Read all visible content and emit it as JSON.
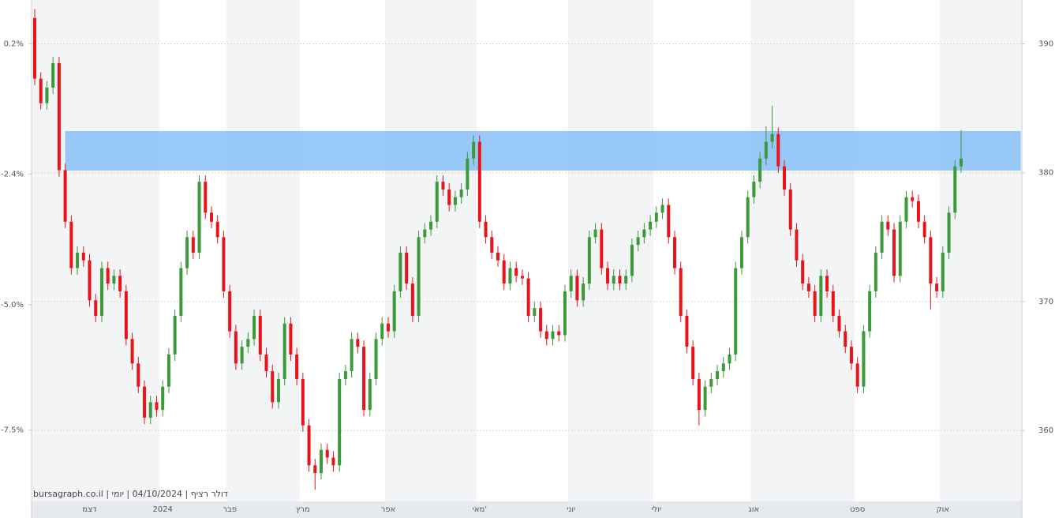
{
  "chart_data": {
    "type": "candlestick",
    "watermark": "bursagraph.co.il | דולר רציף | 04/10/2024 | יומי",
    "categories": [
      null,
      null,
      null,
      null,
      null,
      null,
      null,
      null,
      null,
      "דצמ",
      null,
      null,
      null,
      null,
      null,
      null,
      null,
      null,
      null,
      null,
      null,
      "2024",
      null,
      null,
      null,
      null,
      null,
      null,
      null,
      null,
      null,
      null,
      "פבר",
      null,
      null,
      null,
      null,
      null,
      null,
      null,
      null,
      null,
      null,
      null,
      "מרץ",
      null,
      null,
      null,
      null,
      null,
      null,
      null,
      null,
      null,
      null,
      null,
      null,
      null,
      "אפר",
      null,
      null,
      null,
      null,
      null,
      null,
      null,
      null,
      null,
      null,
      null,
      null,
      null,
      null,
      "מאי'",
      null,
      null,
      null,
      null,
      null,
      null,
      null,
      null,
      null,
      null,
      null,
      null,
      null,
      null,
      "יוני",
      null,
      null,
      null,
      null,
      null,
      null,
      null,
      null,
      null,
      null,
      null,
      null,
      null,
      "יולי",
      null,
      null,
      null,
      null,
      null,
      null,
      null,
      null,
      null,
      null,
      null,
      null,
      null,
      null,
      null,
      "אוג",
      null,
      null,
      null,
      null,
      null,
      null,
      null,
      null,
      null,
      null,
      null,
      null,
      null,
      null,
      null,
      null,
      "ספט",
      null,
      null,
      null,
      null,
      null,
      null,
      null,
      null,
      null,
      null,
      null,
      null,
      null,
      "אוק",
      null,
      null,
      null
    ],
    "open": [
      392.0,
      387.3,
      385.4,
      386.6,
      388.5,
      380.2,
      376.2,
      372.6,
      373.8,
      373.2,
      370.1,
      368.9,
      372.6,
      371.4,
      372.0,
      370.8,
      367.1,
      365.2,
      363.4,
      361.0,
      362.2,
      361.6,
      363.4,
      365.9,
      368.9,
      372.6,
      375.0,
      373.8,
      379.3,
      376.9,
      376.2,
      375.0,
      370.8,
      367.7,
      365.2,
      366.5,
      367.1,
      368.9,
      365.9,
      364.6,
      362.2,
      364.0,
      368.3,
      365.9,
      364.0,
      360.4,
      357.3,
      356.7,
      358.5,
      357.9,
      357.3,
      364.0,
      364.6,
      367.1,
      366.5,
      361.6,
      364.0,
      367.1,
      368.3,
      367.7,
      370.8,
      373.8,
      371.4,
      368.9,
      375.0,
      375.6,
      376.2,
      379.3,
      378.7,
      377.5,
      378.1,
      378.7,
      381.1,
      382.4,
      376.2,
      375.0,
      373.8,
      373.2,
      371.4,
      372.6,
      372.0,
      371.8,
      368.9,
      369.5,
      367.7,
      367.1,
      367.7,
      367.4,
      370.8,
      372.0,
      370.1,
      371.4,
      375.0,
      375.6,
      372.6,
      371.4,
      372.0,
      371.4,
      372.0,
      374.4,
      375.0,
      375.6,
      376.2,
      376.9,
      377.5,
      375.0,
      372.6,
      368.9,
      366.5,
      364.0,
      361.6,
      363.4,
      364.0,
      364.6,
      365.2,
      365.9,
      372.6,
      375.0,
      378.1,
      379.3,
      381.1,
      382.4,
      383.0,
      380.5,
      378.7,
      375.6,
      373.2,
      371.4,
      370.8,
      368.9,
      372.0,
      370.8,
      368.9,
      367.7,
      366.5,
      365.2,
      363.4,
      367.7,
      370.8,
      373.8,
      376.2,
      375.6,
      372.0,
      376.2,
      378.1,
      377.8,
      376.2,
      375.0,
      371.4,
      370.8,
      373.8,
      376.9,
      380.5
    ],
    "high": [
      392.7,
      387.8,
      387.1,
      389.0,
      389.0,
      380.7,
      376.7,
      374.3,
      374.3,
      373.7,
      370.6,
      373.1,
      373.1,
      372.5,
      372.5,
      371.3,
      367.6,
      365.7,
      363.9,
      362.7,
      362.7,
      363.9,
      366.4,
      369.4,
      373.1,
      375.5,
      375.5,
      379.8,
      379.8,
      377.4,
      376.7,
      375.5,
      371.3,
      368.2,
      367.0,
      367.6,
      369.4,
      369.4,
      366.4,
      365.1,
      364.5,
      368.8,
      368.8,
      366.4,
      364.5,
      360.9,
      357.8,
      359.0,
      359.0,
      358.4,
      364.5,
      365.1,
      367.6,
      367.6,
      367.0,
      364.5,
      367.6,
      368.8,
      368.8,
      371.3,
      374.3,
      374.3,
      371.9,
      375.5,
      376.1,
      376.7,
      379.8,
      379.8,
      379.2,
      378.6,
      379.2,
      381.6,
      382.9,
      382.9,
      376.7,
      375.5,
      374.3,
      373.7,
      373.1,
      373.1,
      372.5,
      372.3,
      370.0,
      370.0,
      368.2,
      368.2,
      368.2,
      371.3,
      372.5,
      372.5,
      371.9,
      375.5,
      376.1,
      376.1,
      373.1,
      372.5,
      372.5,
      372.5,
      374.9,
      375.5,
      376.1,
      376.7,
      377.4,
      378.0,
      378.0,
      375.5,
      373.1,
      369.4,
      367.0,
      364.5,
      363.9,
      364.5,
      365.1,
      365.7,
      366.4,
      373.1,
      375.5,
      378.6,
      379.8,
      381.6,
      383.6,
      385.2,
      383.5,
      381.0,
      379.2,
      376.1,
      373.7,
      371.9,
      371.3,
      372.5,
      372.5,
      371.3,
      369.4,
      368.2,
      367.0,
      365.7,
      368.2,
      371.3,
      374.3,
      376.7,
      376.7,
      376.1,
      376.7,
      378.6,
      378.6,
      378.3,
      376.7,
      375.5,
      371.9,
      374.3,
      377.4,
      381.0,
      383.3
    ],
    "low": [
      386.8,
      384.9,
      384.9,
      386.1,
      379.7,
      375.7,
      372.1,
      372.1,
      372.7,
      369.6,
      368.4,
      368.4,
      370.9,
      370.9,
      370.3,
      366.6,
      364.7,
      362.9,
      360.5,
      360.5,
      361.1,
      361.1,
      362.9,
      365.4,
      368.4,
      372.1,
      373.3,
      373.3,
      376.4,
      375.7,
      374.5,
      370.3,
      367.2,
      364.7,
      364.7,
      366.0,
      366.6,
      365.4,
      364.1,
      361.7,
      361.7,
      363.5,
      365.4,
      363.5,
      359.9,
      356.8,
      355.4,
      356.2,
      357.4,
      356.8,
      356.8,
      363.5,
      364.1,
      366.0,
      361.1,
      361.1,
      363.5,
      366.6,
      367.2,
      367.2,
      370.3,
      370.9,
      368.4,
      368.4,
      374.5,
      375.1,
      375.7,
      378.2,
      377.0,
      377.0,
      377.6,
      378.2,
      380.6,
      375.7,
      374.5,
      373.3,
      372.7,
      370.9,
      370.9,
      371.5,
      371.3,
      368.4,
      368.4,
      367.2,
      366.6,
      366.6,
      366.9,
      366.9,
      370.3,
      369.6,
      369.6,
      370.9,
      374.5,
      372.1,
      370.9,
      370.9,
      370.9,
      370.9,
      371.5,
      373.9,
      374.5,
      375.1,
      375.7,
      376.4,
      374.5,
      372.1,
      368.4,
      366.0,
      363.5,
      360.4,
      361.1,
      362.9,
      363.5,
      364.1,
      364.7,
      365.4,
      372.1,
      374.5,
      377.6,
      378.8,
      380.6,
      381.9,
      380.0,
      378.2,
      375.1,
      372.7,
      370.9,
      370.3,
      368.4,
      368.4,
      370.3,
      368.4,
      367.2,
      366.0,
      364.7,
      362.9,
      362.9,
      367.2,
      370.3,
      373.3,
      375.1,
      371.5,
      371.5,
      375.7,
      377.3,
      375.7,
      374.5,
      369.4,
      370.3,
      370.3,
      373.3,
      376.4,
      380.0
    ],
    "close": [
      387.3,
      385.4,
      386.6,
      388.5,
      380.2,
      376.2,
      372.6,
      373.8,
      373.2,
      370.1,
      368.9,
      372.6,
      371.4,
      372.0,
      370.8,
      367.1,
      365.2,
      363.4,
      361.0,
      362.2,
      361.6,
      363.4,
      365.9,
      368.9,
      372.6,
      375.0,
      373.8,
      379.3,
      376.9,
      376.2,
      375.0,
      370.8,
      367.7,
      365.2,
      366.5,
      367.1,
      368.9,
      365.9,
      364.6,
      362.2,
      364.0,
      368.3,
      365.9,
      364.0,
      360.4,
      357.3,
      356.7,
      358.5,
      357.9,
      357.3,
      364.0,
      364.6,
      367.1,
      366.5,
      361.6,
      364.0,
      367.1,
      368.3,
      367.7,
      370.8,
      373.8,
      371.4,
      368.9,
      375.0,
      375.6,
      376.2,
      379.3,
      378.7,
      377.5,
      378.1,
      378.7,
      381.1,
      382.4,
      376.2,
      375.0,
      373.8,
      373.2,
      371.4,
      372.6,
      372.0,
      371.8,
      368.9,
      369.5,
      367.7,
      367.1,
      367.7,
      367.4,
      370.8,
      372.0,
      370.1,
      371.4,
      375.0,
      375.6,
      372.6,
      371.4,
      372.0,
      371.4,
      372.0,
      374.4,
      375.0,
      375.6,
      376.2,
      376.9,
      377.5,
      375.0,
      372.6,
      368.9,
      366.5,
      364.0,
      361.6,
      363.4,
      364.0,
      364.6,
      365.2,
      365.9,
      372.6,
      375.0,
      378.1,
      379.3,
      381.1,
      382.4,
      383.0,
      380.5,
      378.7,
      375.6,
      373.2,
      371.4,
      370.8,
      368.9,
      372.0,
      370.8,
      368.9,
      367.7,
      366.5,
      365.2,
      363.4,
      367.7,
      370.8,
      373.8,
      376.2,
      375.6,
      372.0,
      376.2,
      378.1,
      377.8,
      376.2,
      375.0,
      371.4,
      370.8,
      373.8,
      376.9,
      380.5,
      381.1
    ],
    "up_color": "#3a9a3a",
    "down_color": "#e8141a",
    "ylim": [
      354.5,
      393.4
    ],
    "yticks": [
      360,
      370,
      380,
      390
    ],
    "y2lim": [
      -8.92,
      1.07
    ],
    "y2ticks": [
      {
        "value": 0.2,
        "label": "0.2%"
      },
      {
        "value": -2.4,
        "label": "-2.4%"
      },
      {
        "value": -5,
        "label": "-5.0%"
      },
      {
        "value": -7.5,
        "label": "-7.5%"
      }
    ],
    "grid": true,
    "highlight_band": {
      "range": [
        380.2,
        383.2
      ],
      "color": "#8ec3f8"
    }
  }
}
